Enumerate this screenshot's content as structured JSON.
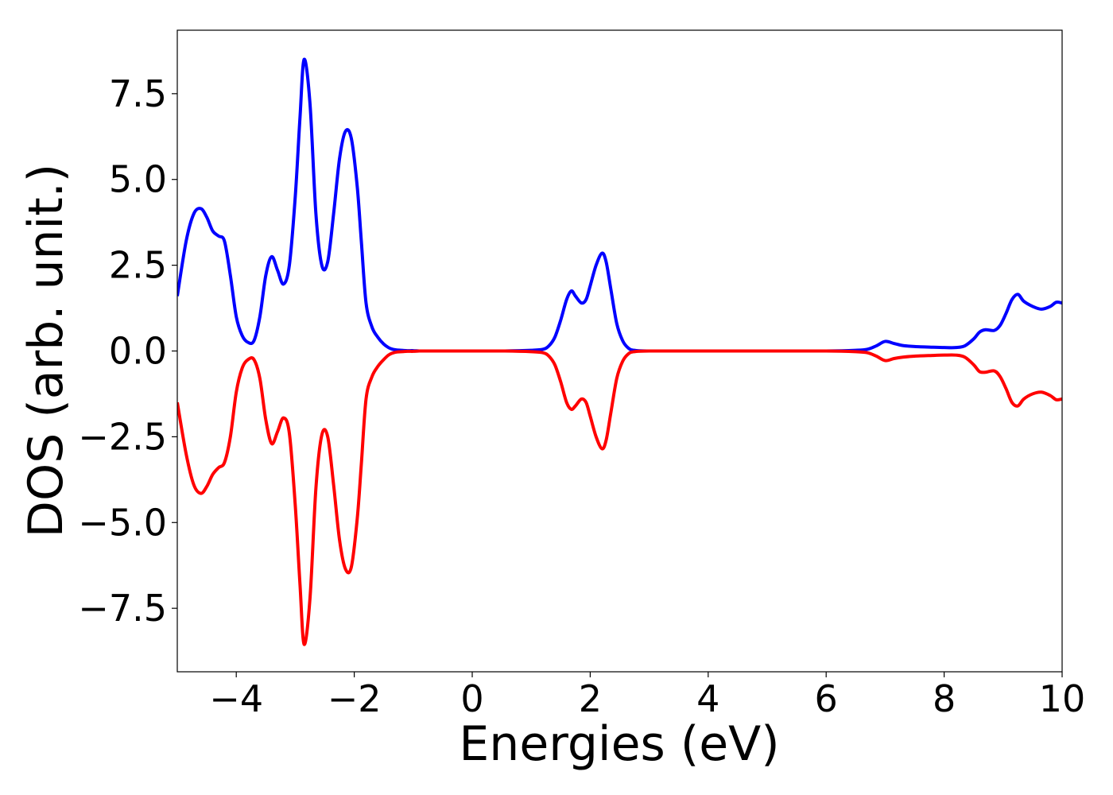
{
  "chart_data": {
    "type": "line",
    "title": "",
    "xlabel": "Energies (eV)",
    "ylabel": "DOS (arb. unit.)",
    "xlim": [
      -5,
      10
    ],
    "ylim": [
      -9.35,
      9.35
    ],
    "xticks": [
      -4,
      -2,
      0,
      2,
      4,
      6,
      8,
      10
    ],
    "yticks": [
      -7.5,
      -5.0,
      -2.5,
      0.0,
      2.5,
      5.0,
      7.5
    ],
    "xtick_labels": [
      "−4",
      "−2",
      "0",
      "2",
      "4",
      "6",
      "8",
      "10"
    ],
    "ytick_labels": [
      "−7.5",
      "−5.0",
      "−2.5",
      "0.0",
      "2.5",
      "5.0",
      "7.5"
    ],
    "grid": false,
    "legend": "none",
    "series": [
      {
        "color": "#0000ff",
        "x": [
          -5.0,
          -4.85,
          -4.72,
          -4.6,
          -4.5,
          -4.4,
          -4.3,
          -4.2,
          -4.1,
          -4.0,
          -3.9,
          -3.8,
          -3.7,
          -3.6,
          -3.5,
          -3.4,
          -3.3,
          -3.2,
          -3.1,
          -3.0,
          -2.92,
          -2.85,
          -2.75,
          -2.65,
          -2.55,
          -2.45,
          -2.35,
          -2.25,
          -2.15,
          -2.05,
          -1.95,
          -1.88,
          -1.8,
          -1.7,
          -1.6,
          -1.5,
          -1.42,
          -1.35,
          -1.28,
          -1.2,
          -1.1,
          -1.0,
          -0.9,
          -0.8,
          -0.7,
          -0.6,
          -0.5,
          0.0,
          0.5,
          1.0,
          1.2,
          1.3,
          1.4,
          1.5,
          1.6,
          1.68,
          1.75,
          1.85,
          1.93,
          2.0,
          2.1,
          2.2,
          2.27,
          2.35,
          2.45,
          2.55,
          2.65,
          2.75,
          3.0,
          4.0,
          5.0,
          6.0,
          6.5,
          6.7,
          6.85,
          7.0,
          7.15,
          7.3,
          7.5,
          7.8,
          8.0,
          8.2,
          8.35,
          8.5,
          8.6,
          8.7,
          8.85,
          8.95,
          9.05,
          9.15,
          9.25,
          9.35,
          9.5,
          9.65,
          9.8,
          9.9,
          10.0
        ],
        "y": [
          1.6,
          3.2,
          4.0,
          4.15,
          3.9,
          3.5,
          3.35,
          3.2,
          2.2,
          1.0,
          0.45,
          0.25,
          0.3,
          1.0,
          2.2,
          2.75,
          2.35,
          1.95,
          2.5,
          4.5,
          6.8,
          8.5,
          7.2,
          4.0,
          2.5,
          2.6,
          4.0,
          5.6,
          6.4,
          6.2,
          4.8,
          3.2,
          1.4,
          0.7,
          0.4,
          0.2,
          0.1,
          0.05,
          0.03,
          0.02,
          0.01,
          0.01,
          0.0,
          0.0,
          0.0,
          0.0,
          0.0,
          0.0,
          0.0,
          0.02,
          0.05,
          0.15,
          0.4,
          0.9,
          1.5,
          1.75,
          1.6,
          1.4,
          1.5,
          1.9,
          2.5,
          2.85,
          2.6,
          1.8,
          0.8,
          0.3,
          0.08,
          0.02,
          0.0,
          0.0,
          0.0,
          0.0,
          0.02,
          0.05,
          0.15,
          0.28,
          0.22,
          0.16,
          0.13,
          0.11,
          0.1,
          0.1,
          0.15,
          0.35,
          0.55,
          0.62,
          0.6,
          0.75,
          1.1,
          1.5,
          1.65,
          1.45,
          1.3,
          1.22,
          1.3,
          1.42,
          1.4
        ]
      },
      {
        "color": "#ff0000",
        "x": [
          -5.0,
          -4.85,
          -4.72,
          -4.6,
          -4.5,
          -4.4,
          -4.3,
          -4.2,
          -4.1,
          -4.0,
          -3.9,
          -3.8,
          -3.7,
          -3.6,
          -3.5,
          -3.4,
          -3.3,
          -3.2,
          -3.1,
          -3.0,
          -2.92,
          -2.85,
          -2.75,
          -2.65,
          -2.55,
          -2.45,
          -2.35,
          -2.25,
          -2.15,
          -2.05,
          -1.95,
          -1.88,
          -1.8,
          -1.7,
          -1.6,
          -1.5,
          -1.42,
          -1.35,
          -1.28,
          -1.2,
          -1.1,
          -1.0,
          -0.9,
          -0.8,
          -0.7,
          -0.6,
          -0.5,
          0.0,
          0.5,
          1.0,
          1.2,
          1.3,
          1.4,
          1.5,
          1.6,
          1.68,
          1.75,
          1.85,
          1.93,
          2.0,
          2.1,
          2.2,
          2.27,
          2.35,
          2.45,
          2.55,
          2.65,
          2.75,
          3.0,
          4.0,
          5.0,
          6.0,
          6.5,
          6.7,
          6.85,
          7.0,
          7.15,
          7.3,
          7.5,
          7.8,
          8.0,
          8.2,
          8.35,
          8.5,
          8.6,
          8.7,
          8.85,
          8.95,
          9.05,
          9.15,
          9.25,
          9.35,
          9.5,
          9.65,
          9.8,
          9.9,
          10.0
        ],
        "y": [
          -1.5,
          -3.0,
          -3.9,
          -4.15,
          -3.95,
          -3.6,
          -3.4,
          -3.25,
          -2.5,
          -1.2,
          -0.5,
          -0.25,
          -0.25,
          -0.8,
          -2.0,
          -2.7,
          -2.35,
          -1.95,
          -2.4,
          -4.5,
          -6.8,
          -8.55,
          -7.2,
          -4.0,
          -2.45,
          -2.5,
          -3.9,
          -5.5,
          -6.35,
          -6.3,
          -4.9,
          -3.3,
          -1.4,
          -0.75,
          -0.45,
          -0.25,
          -0.12,
          -0.06,
          -0.03,
          -0.02,
          -0.01,
          -0.01,
          0.0,
          0.0,
          0.0,
          0.0,
          0.0,
          0.0,
          0.0,
          -0.02,
          -0.05,
          -0.15,
          -0.4,
          -0.9,
          -1.5,
          -1.7,
          -1.6,
          -1.4,
          -1.5,
          -1.9,
          -2.5,
          -2.85,
          -2.6,
          -1.8,
          -0.8,
          -0.3,
          -0.08,
          -0.02,
          0.0,
          0.0,
          0.0,
          0.0,
          -0.02,
          -0.05,
          -0.15,
          -0.28,
          -0.22,
          -0.18,
          -0.15,
          -0.13,
          -0.12,
          -0.12,
          -0.18,
          -0.4,
          -0.6,
          -0.62,
          -0.58,
          -0.75,
          -1.1,
          -1.5,
          -1.6,
          -1.4,
          -1.25,
          -1.2,
          -1.3,
          -1.42,
          -1.4
        ]
      }
    ]
  }
}
